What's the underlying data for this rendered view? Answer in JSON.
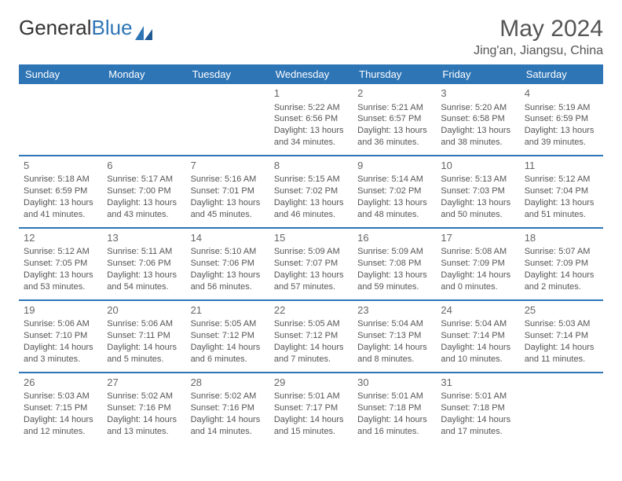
{
  "brand": {
    "part1": "General",
    "part2": "Blue"
  },
  "title": "May 2024",
  "location": "Jing'an, Jiangsu, China",
  "colors": {
    "header_bg": "#2e75b6",
    "header_fg": "#ffffff",
    "text": "#555555",
    "border": "#2e75b6"
  },
  "fonts": {
    "title_size": 30,
    "location_size": 16,
    "weekday_size": 13,
    "cell_size": 11,
    "daynum_size": 13
  },
  "weekdays": [
    "Sunday",
    "Monday",
    "Tuesday",
    "Wednesday",
    "Thursday",
    "Friday",
    "Saturday"
  ],
  "weeks": [
    [
      null,
      null,
      null,
      {
        "n": "1",
        "sr": "5:22 AM",
        "ss": "6:56 PM",
        "dl": "13 hours and 34 minutes."
      },
      {
        "n": "2",
        "sr": "5:21 AM",
        "ss": "6:57 PM",
        "dl": "13 hours and 36 minutes."
      },
      {
        "n": "3",
        "sr": "5:20 AM",
        "ss": "6:58 PM",
        "dl": "13 hours and 38 minutes."
      },
      {
        "n": "4",
        "sr": "5:19 AM",
        "ss": "6:59 PM",
        "dl": "13 hours and 39 minutes."
      }
    ],
    [
      {
        "n": "5",
        "sr": "5:18 AM",
        "ss": "6:59 PM",
        "dl": "13 hours and 41 minutes."
      },
      {
        "n": "6",
        "sr": "5:17 AM",
        "ss": "7:00 PM",
        "dl": "13 hours and 43 minutes."
      },
      {
        "n": "7",
        "sr": "5:16 AM",
        "ss": "7:01 PM",
        "dl": "13 hours and 45 minutes."
      },
      {
        "n": "8",
        "sr": "5:15 AM",
        "ss": "7:02 PM",
        "dl": "13 hours and 46 minutes."
      },
      {
        "n": "9",
        "sr": "5:14 AM",
        "ss": "7:02 PM",
        "dl": "13 hours and 48 minutes."
      },
      {
        "n": "10",
        "sr": "5:13 AM",
        "ss": "7:03 PM",
        "dl": "13 hours and 50 minutes."
      },
      {
        "n": "11",
        "sr": "5:12 AM",
        "ss": "7:04 PM",
        "dl": "13 hours and 51 minutes."
      }
    ],
    [
      {
        "n": "12",
        "sr": "5:12 AM",
        "ss": "7:05 PM",
        "dl": "13 hours and 53 minutes."
      },
      {
        "n": "13",
        "sr": "5:11 AM",
        "ss": "7:06 PM",
        "dl": "13 hours and 54 minutes."
      },
      {
        "n": "14",
        "sr": "5:10 AM",
        "ss": "7:06 PM",
        "dl": "13 hours and 56 minutes."
      },
      {
        "n": "15",
        "sr": "5:09 AM",
        "ss": "7:07 PM",
        "dl": "13 hours and 57 minutes."
      },
      {
        "n": "16",
        "sr": "5:09 AM",
        "ss": "7:08 PM",
        "dl": "13 hours and 59 minutes."
      },
      {
        "n": "17",
        "sr": "5:08 AM",
        "ss": "7:09 PM",
        "dl": "14 hours and 0 minutes."
      },
      {
        "n": "18",
        "sr": "5:07 AM",
        "ss": "7:09 PM",
        "dl": "14 hours and 2 minutes."
      }
    ],
    [
      {
        "n": "19",
        "sr": "5:06 AM",
        "ss": "7:10 PM",
        "dl": "14 hours and 3 minutes."
      },
      {
        "n": "20",
        "sr": "5:06 AM",
        "ss": "7:11 PM",
        "dl": "14 hours and 5 minutes."
      },
      {
        "n": "21",
        "sr": "5:05 AM",
        "ss": "7:12 PM",
        "dl": "14 hours and 6 minutes."
      },
      {
        "n": "22",
        "sr": "5:05 AM",
        "ss": "7:12 PM",
        "dl": "14 hours and 7 minutes."
      },
      {
        "n": "23",
        "sr": "5:04 AM",
        "ss": "7:13 PM",
        "dl": "14 hours and 8 minutes."
      },
      {
        "n": "24",
        "sr": "5:04 AM",
        "ss": "7:14 PM",
        "dl": "14 hours and 10 minutes."
      },
      {
        "n": "25",
        "sr": "5:03 AM",
        "ss": "7:14 PM",
        "dl": "14 hours and 11 minutes."
      }
    ],
    [
      {
        "n": "26",
        "sr": "5:03 AM",
        "ss": "7:15 PM",
        "dl": "14 hours and 12 minutes."
      },
      {
        "n": "27",
        "sr": "5:02 AM",
        "ss": "7:16 PM",
        "dl": "14 hours and 13 minutes."
      },
      {
        "n": "28",
        "sr": "5:02 AM",
        "ss": "7:16 PM",
        "dl": "14 hours and 14 minutes."
      },
      {
        "n": "29",
        "sr": "5:01 AM",
        "ss": "7:17 PM",
        "dl": "14 hours and 15 minutes."
      },
      {
        "n": "30",
        "sr": "5:01 AM",
        "ss": "7:18 PM",
        "dl": "14 hours and 16 minutes."
      },
      {
        "n": "31",
        "sr": "5:01 AM",
        "ss": "7:18 PM",
        "dl": "14 hours and 17 minutes."
      },
      null
    ]
  ],
  "labels": {
    "sunrise": "Sunrise:",
    "sunset": "Sunset:",
    "daylight": "Daylight:"
  }
}
